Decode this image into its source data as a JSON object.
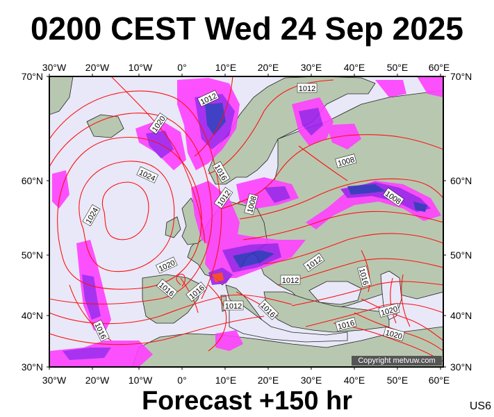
{
  "title": "0200 CEST Wed 24 Sep 2025",
  "footer": "Forecast +150 hr",
  "code": "US6",
  "copyright": "Copyright metvuw.com",
  "colors": {
    "ocean": "#e8e8f8",
    "land": "#b8c8b0",
    "isobar": "#ff1010",
    "rain_light": "#ff40ff",
    "rain_mid": "#a020f0",
    "rain_heavy": "#3030c0"
  },
  "axes": {
    "lon_labels": [
      "30°W",
      "20°W",
      "10°W",
      "0°",
      "10°E",
      "20°E",
      "30°E",
      "40°E",
      "50°E",
      "60°E"
    ],
    "lat_labels": [
      "70°N",
      "60°N",
      "50°N",
      "40°N",
      "30°N"
    ]
  },
  "isobar_labels": [
    "1012",
    "1020",
    "1024",
    "1024",
    "1016",
    "1012",
    "1008",
    "1012",
    "1008",
    "1008",
    "1020",
    "1016",
    "1016",
    "1012",
    "1012",
    "1012",
    "1016",
    "1016",
    "1016",
    "1020",
    "1020",
    "1016"
  ]
}
